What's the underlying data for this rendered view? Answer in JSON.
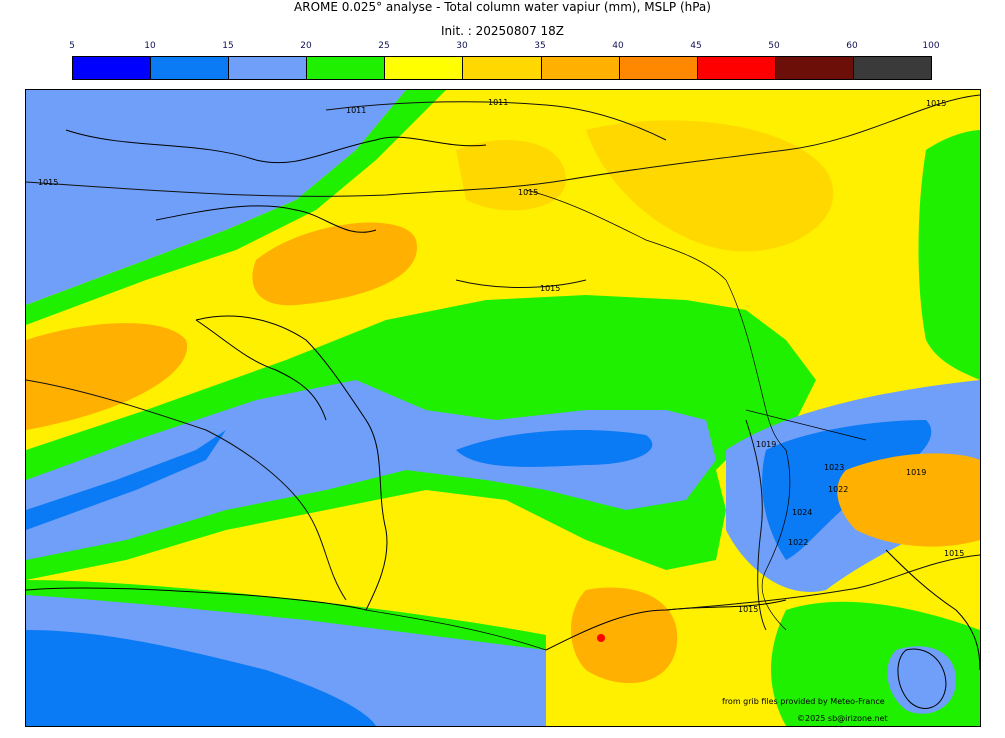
{
  "header": {
    "title": "AROME 0.025° analyse - Total column water vapiur (mm), MSLP (hPa)",
    "init": "Init. : 20250807 18Z"
  },
  "colorbar": {
    "ticks": [
      "5",
      "10",
      "15",
      "20",
      "25",
      "30",
      "35",
      "40",
      "45",
      "50",
      "60",
      "100"
    ],
    "colors": [
      "#0000ff",
      "#0a7af5",
      "#6f9ff8",
      "#1ef000",
      "#ffff00",
      "#ffd800",
      "#ffb000",
      "#ff8800",
      "#ff0000",
      "#6b0f08",
      "#3a3a3a"
    ]
  },
  "map": {
    "isobar_labels": [
      "1011",
      "1011",
      "1015",
      "1015",
      "1015",
      "1015",
      "1019",
      "1023",
      "1022",
      "1024",
      "1022",
      "1019",
      "1015",
      "1015"
    ]
  },
  "footer": {
    "source": "from grib files provided by Meteo-France",
    "copyright": "©2025 sb@irizone.net"
  }
}
